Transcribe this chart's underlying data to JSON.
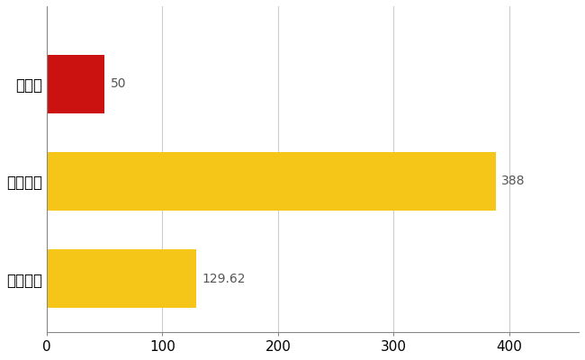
{
  "categories": [
    "高知県",
    "全国最大",
    "全国平均"
  ],
  "values": [
    50,
    388,
    129.62
  ],
  "bar_colors": [
    "#cc1111",
    "#f5c518",
    "#f5c518"
  ],
  "value_labels": [
    "50",
    "388",
    "129.62"
  ],
  "xlim": [
    0,
    460
  ],
  "xticks": [
    0,
    100,
    200,
    300,
    400
  ],
  "background_color": "#ffffff",
  "grid_color": "#cccccc",
  "bar_height": 0.6,
  "label_fontsize": 12,
  "tick_fontsize": 11,
  "value_fontsize": 10
}
